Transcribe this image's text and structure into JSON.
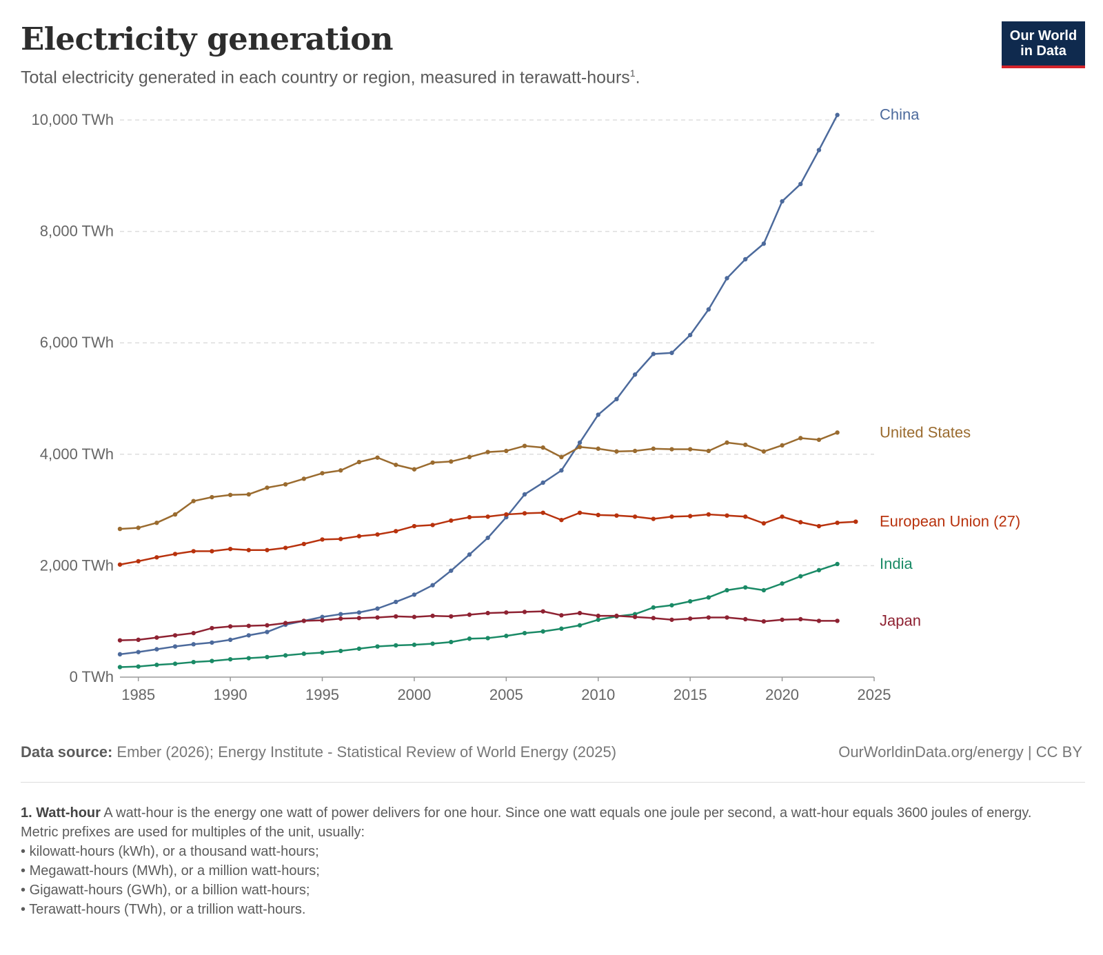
{
  "header": {
    "title": "Electricity generation",
    "subtitle": "Total electricity generated in each country or region, measured in terawatt-hours",
    "subtitle_note": "1",
    "subtitle_end": "."
  },
  "logo": {
    "line1": "Our World",
    "line2": "in Data",
    "bg": "#0f2a4e",
    "accent": "#d3222a"
  },
  "chart_data": {
    "type": "line",
    "title": "Electricity generation",
    "ylim": [
      0,
      10000
    ],
    "xlim": [
      1984,
      2025
    ],
    "y_ticks": [
      {
        "value": 0,
        "label": "0 TWh"
      },
      {
        "value": 2000,
        "label": "2,000 TWh"
      },
      {
        "value": 4000,
        "label": "4,000 TWh"
      },
      {
        "value": 6000,
        "label": "6,000 TWh"
      },
      {
        "value": 8000,
        "label": "8,000 TWh"
      },
      {
        "value": 10000,
        "label": "10,000 TWh"
      }
    ],
    "x_ticks": [
      1985,
      1990,
      1995,
      2000,
      2005,
      2010,
      2015,
      2020,
      2025
    ],
    "grid": "horizontal dashed",
    "legend": "line-end labels",
    "series": [
      {
        "name": "China",
        "color": "#4c6a9c",
        "x": [
          1984,
          1985,
          1986,
          1987,
          1988,
          1989,
          1990,
          1991,
          1992,
          1993,
          1994,
          1995,
          1996,
          1997,
          1998,
          1999,
          2000,
          2001,
          2002,
          2003,
          2004,
          2005,
          2006,
          2007,
          2008,
          2009,
          2010,
          2011,
          2012,
          2013,
          2014,
          2015,
          2016,
          2017,
          2018,
          2019,
          2020,
          2021,
          2022,
          2023,
          2024
        ],
        "values": [
          410,
          450,
          500,
          550,
          590,
          620,
          670,
          750,
          810,
          940,
          1010,
          1080,
          1130,
          1160,
          1230,
          1350,
          1480,
          1650,
          1910,
          2200,
          2500,
          2870,
          3280,
          3490,
          3710,
          4210,
          4710,
          4990,
          5430,
          5800,
          5820,
          6140,
          6600,
          7160,
          7500,
          7780,
          8540,
          8850,
          9460,
          10090,
          null
        ]
      },
      {
        "name": "United States",
        "color": "#9a6b2f",
        "x": [
          1984,
          1985,
          1986,
          1987,
          1988,
          1989,
          1990,
          1991,
          1992,
          1993,
          1994,
          1995,
          1996,
          1997,
          1998,
          1999,
          2000,
          2001,
          2002,
          2003,
          2004,
          2005,
          2006,
          2007,
          2008,
          2009,
          2010,
          2011,
          2012,
          2013,
          2014,
          2015,
          2016,
          2017,
          2018,
          2019,
          2020,
          2021,
          2022,
          2023,
          2024
        ],
        "values": [
          2660,
          2680,
          2770,
          2920,
          3160,
          3230,
          3270,
          3280,
          3400,
          3460,
          3560,
          3660,
          3710,
          3860,
          3940,
          3810,
          3730,
          3850,
          3870,
          3950,
          4040,
          4060,
          4150,
          4120,
          3950,
          4130,
          4100,
          4050,
          4060,
          4100,
          4090,
          4090,
          4060,
          4210,
          4170,
          4050,
          4160,
          4290,
          4260,
          4390,
          null
        ]
      },
      {
        "name": "European Union (27)",
        "color": "#b8320d",
        "x": [
          1984,
          1985,
          1986,
          1987,
          1988,
          1989,
          1990,
          1991,
          1992,
          1993,
          1994,
          1995,
          1996,
          1997,
          1998,
          1999,
          2000,
          2001,
          2002,
          2003,
          2004,
          2005,
          2006,
          2007,
          2008,
          2009,
          2010,
          2011,
          2012,
          2013,
          2014,
          2015,
          2016,
          2017,
          2018,
          2019,
          2020,
          2021,
          2022,
          2023,
          2024,
          2025
        ],
        "values": [
          2020,
          2080,
          2150,
          2210,
          2260,
          2260,
          2300,
          2280,
          2280,
          2320,
          2390,
          2470,
          2480,
          2530,
          2560,
          2620,
          2710,
          2730,
          2810,
          2870,
          2880,
          2920,
          2940,
          2950,
          2820,
          2950,
          2910,
          2900,
          2880,
          2840,
          2880,
          2890,
          2920,
          2900,
          2880,
          2760,
          2880,
          2780,
          2710,
          2770,
          2790,
          null
        ]
      },
      {
        "name": "India",
        "color": "#1a8a66",
        "x": [
          1984,
          1985,
          1986,
          1987,
          1988,
          1989,
          1990,
          1991,
          1992,
          1993,
          1994,
          1995,
          1996,
          1997,
          1998,
          1999,
          2000,
          2001,
          2002,
          2003,
          2004,
          2005,
          2006,
          2007,
          2008,
          2009,
          2010,
          2011,
          2012,
          2013,
          2014,
          2015,
          2016,
          2017,
          2018,
          2019,
          2020,
          2021,
          2022,
          2023,
          2024
        ],
        "values": [
          180,
          190,
          220,
          240,
          270,
          290,
          320,
          340,
          360,
          390,
          420,
          440,
          470,
          510,
          550,
          570,
          580,
          600,
          630,
          690,
          700,
          740,
          790,
          820,
          870,
          930,
          1030,
          1090,
          1130,
          1250,
          1290,
          1360,
          1430,
          1560,
          1610,
          1560,
          1680,
          1810,
          1920,
          2030,
          null
        ]
      },
      {
        "name": "Japan",
        "color": "#8e2232",
        "x": [
          1984,
          1985,
          1986,
          1987,
          1988,
          1989,
          1990,
          1991,
          1992,
          1993,
          1994,
          1995,
          1996,
          1997,
          1998,
          1999,
          2000,
          2001,
          2002,
          2003,
          2004,
          2005,
          2006,
          2007,
          2008,
          2009,
          2010,
          2011,
          2012,
          2013,
          2014,
          2015,
          2016,
          2017,
          2018,
          2019,
          2020,
          2021,
          2022,
          2023,
          2024
        ],
        "values": [
          660,
          670,
          710,
          750,
          790,
          880,
          910,
          920,
          930,
          970,
          1010,
          1020,
          1050,
          1060,
          1070,
          1090,
          1080,
          1100,
          1090,
          1120,
          1150,
          1160,
          1170,
          1180,
          1110,
          1150,
          1100,
          1100,
          1080,
          1060,
          1030,
          1050,
          1070,
          1070,
          1040,
          1000,
          1030,
          1040,
          1010,
          1010,
          null
        ]
      }
    ]
  },
  "footer": {
    "source_label": "Data source:",
    "source_text": " Ember (2026); Energy Institute - Statistical Review of World Energy (2025)",
    "license": "OurWorldinData.org/energy | CC BY"
  },
  "notes": {
    "heading": "1. Watt-hour",
    "body": " A watt-hour is the energy one watt of power delivers for one hour. Since one watt equals one joule per second, a watt-hour equals 3600 joules of energy.",
    "intro": "Metric prefixes are used for multiples of the unit, usually:",
    "bullets": [
      "kilowatt-hours (kWh), or a thousand watt-hours;",
      "Megawatt-hours (MWh), or a million watt-hours;",
      "Gigawatt-hours (GWh), or a billion watt-hours;",
      "Terawatt-hours (TWh), or a trillion watt-hours."
    ]
  }
}
